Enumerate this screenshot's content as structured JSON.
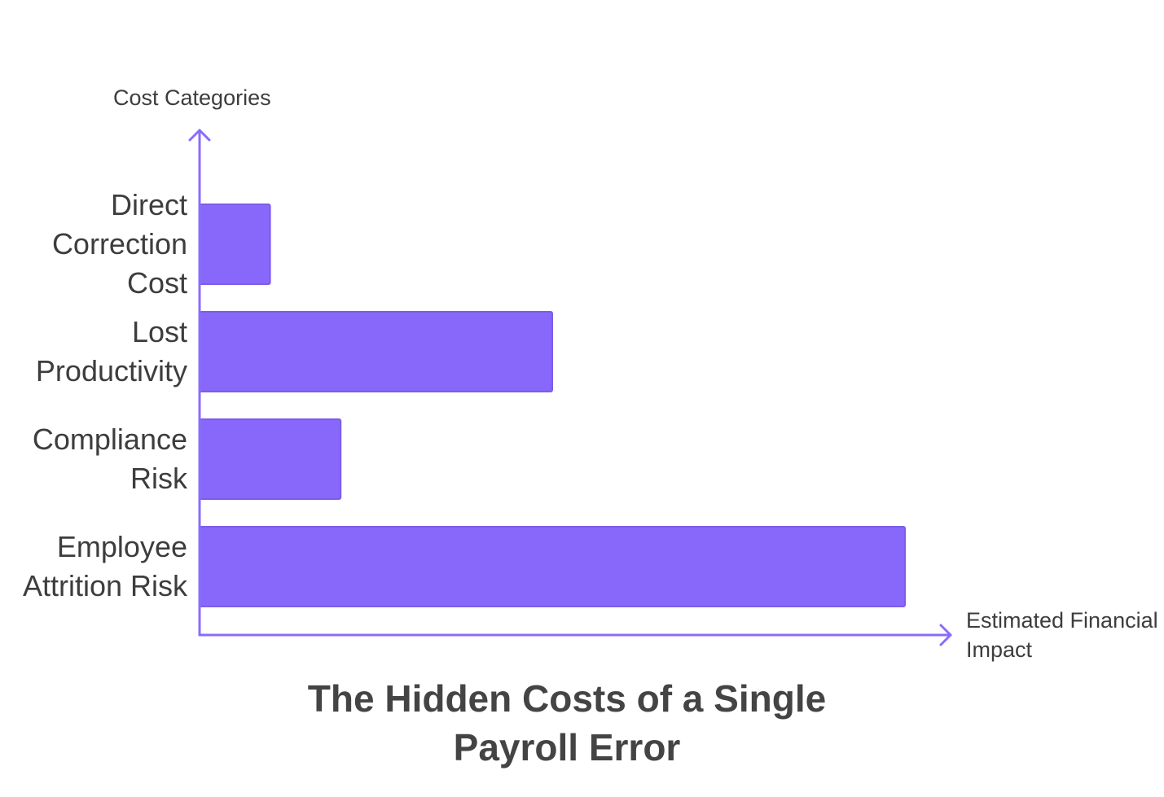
{
  "chart_data": {
    "type": "bar",
    "orientation": "horizontal",
    "title": "The Hidden Costs of a Single Payroll Error",
    "ylabel": "Cost Categories",
    "xlabel": "Estimated Financial Impact",
    "categories": [
      "Direct Correction Cost",
      "Lost Productivity",
      "Compliance Risk",
      "Employee Attrition Risk"
    ],
    "values": [
      10,
      50,
      20,
      100
    ],
    "xlim": [
      0,
      106
    ],
    "grid": false,
    "tick_labels_shown": false,
    "colors": {
      "bar": "#8868fb",
      "bar_border": "#7b5de8",
      "axis": "#8a6cfa",
      "text": "#3d3d3d"
    }
  }
}
